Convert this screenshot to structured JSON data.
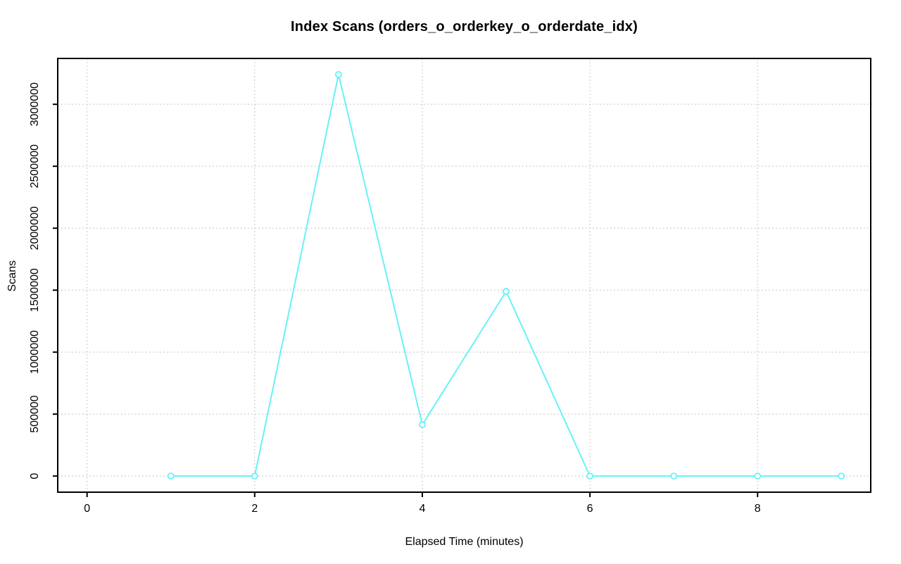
{
  "chart_data": {
    "type": "line",
    "title": "Index Scans (orders_o_orderkey_o_orderdate_idx)",
    "xlabel": "Elapsed Time (minutes)",
    "ylabel": "Scans",
    "x": [
      1,
      2,
      3,
      4,
      5,
      6,
      7,
      8,
      9
    ],
    "values": [
      0,
      0,
      3240000,
      415000,
      1490000,
      0,
      0,
      0,
      0
    ],
    "x_ticks": [
      0,
      2,
      4,
      6,
      8
    ],
    "x_tick_labels": [
      "0",
      "2",
      "4",
      "6",
      "8"
    ],
    "y_ticks": [
      0,
      500000,
      1000000,
      1500000,
      2000000,
      2500000,
      3000000
    ],
    "y_tick_labels": [
      "0",
      "500000",
      "1000000",
      "1500000",
      "2000000",
      "2500000",
      "3000000"
    ],
    "xlim": [
      -0.35,
      9.35
    ],
    "ylim": [
      -130000,
      3370000
    ],
    "grid": true,
    "legend_position": "none",
    "marker": "open-circle",
    "series_color": "#66f2f8",
    "grid_color": "#cfcfcf",
    "axis_color": "#000000",
    "background_color": "#ffffff"
  }
}
